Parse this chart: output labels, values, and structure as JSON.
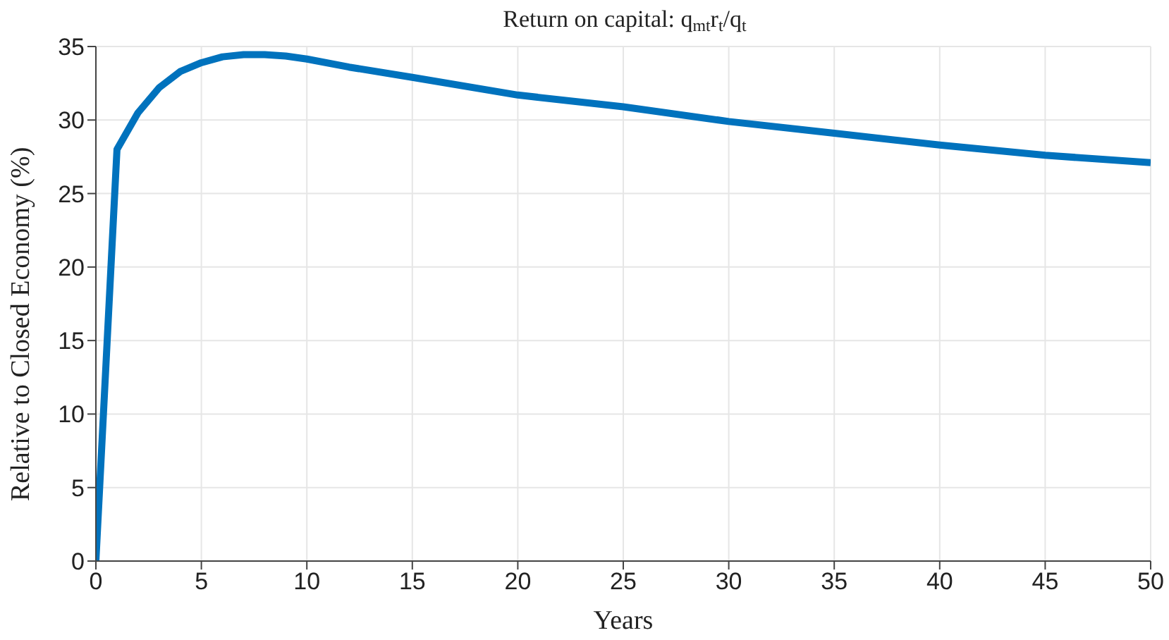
{
  "chart_data": {
    "type": "line",
    "title": "Return on capital: q$_{mt}$r$_{t}$/q$_{t}$",
    "xlabel": "Years",
    "ylabel": "Relative to Closed Economy (%)",
    "x": [
      0,
      1,
      2,
      3,
      4,
      5,
      6,
      7,
      8,
      9,
      10,
      12,
      15,
      20,
      25,
      30,
      35,
      40,
      45,
      50
    ],
    "series": [
      {
        "color": "#0072bd",
        "values": [
          0,
          28,
          30.5,
          32.2,
          33.3,
          33.9,
          34.3,
          34.45,
          34.45,
          34.35,
          34.15,
          33.6,
          32.9,
          31.7,
          30.9,
          29.9,
          29.1,
          28.3,
          27.6,
          27.1
        ]
      }
    ],
    "xlim": [
      0,
      50
    ],
    "xticks": [
      0,
      5,
      10,
      15,
      20,
      25,
      30,
      35,
      40,
      45,
      50
    ],
    "ylim": [
      0,
      35
    ],
    "yticks": [
      0,
      5,
      10,
      15,
      20,
      25,
      30,
      35
    ],
    "grid": true,
    "marker": "none",
    "line_style": "solid"
  }
}
